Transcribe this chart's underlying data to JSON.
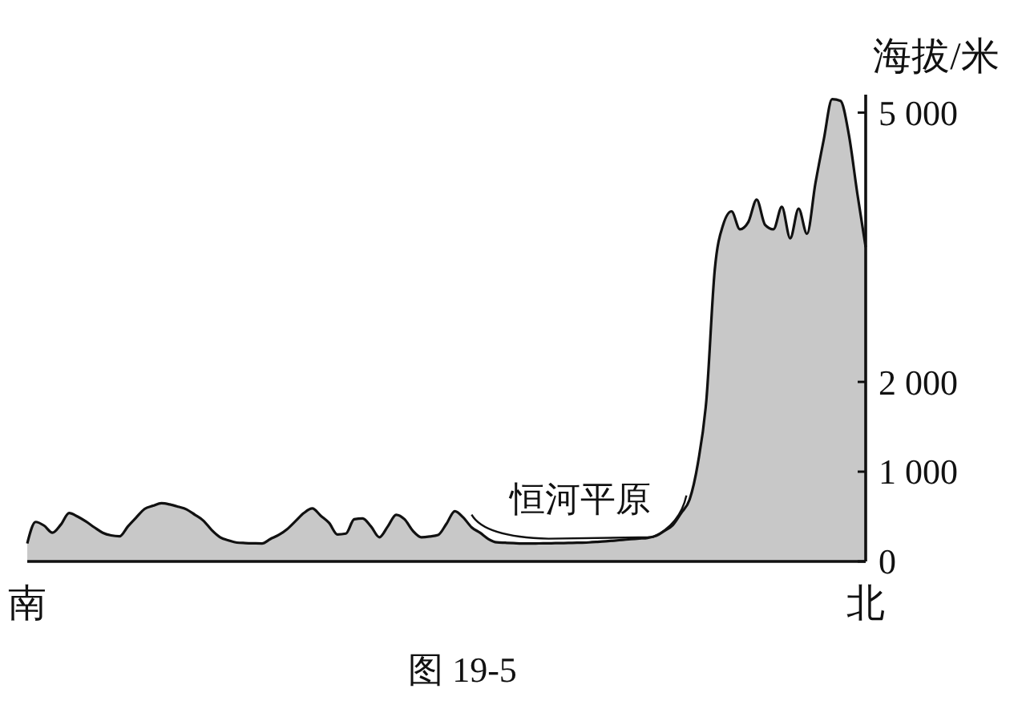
{
  "chart_data": {
    "type": "area",
    "ylabel": "海拔/米",
    "annotations": [
      "恒河平原",
      "图 19-5"
    ],
    "categories": [
      "南",
      null,
      null,
      null,
      null,
      null,
      null,
      null,
      null,
      null,
      null,
      null,
      null,
      null,
      null,
      null,
      null,
      null,
      null,
      null,
      null,
      null,
      null,
      null,
      null,
      null,
      null,
      null,
      null,
      null,
      null,
      null,
      null,
      null,
      null,
      null,
      null,
      null,
      null,
      null,
      null,
      null,
      null,
      null,
      null,
      null,
      null,
      null,
      null,
      null,
      null,
      null,
      null,
      null,
      null,
      null,
      null,
      null,
      null,
      null,
      null,
      null,
      null,
      null,
      null,
      null,
      null,
      null,
      null,
      null,
      null,
      null,
      null,
      null,
      null,
      null,
      null,
      null,
      null,
      null,
      null,
      null,
      null,
      null,
      null,
      null,
      null,
      null,
      null,
      null,
      null,
      null,
      null,
      null,
      null,
      null,
      null,
      null,
      null,
      null,
      "北"
    ],
    "ylim": [
      0,
      5200
    ],
    "yticks": [
      0,
      {
        "value": 1000,
        "label": "1 000"
      },
      {
        "value": 2000,
        "label": "2 000"
      },
      {
        "value": 5000,
        "label": "5 000"
      }
    ],
    "series": [
      {
        "color": "#c8c8c8",
        "values": [
          200,
          440,
          400,
          320,
          410,
          540,
          500,
          445,
          380,
          320,
          290,
          280,
          390,
          490,
          585,
          620,
          648,
          635,
          610,
          580,
          520,
          455,
          350,
          270,
          235,
          210,
          205,
          202,
          200,
          250,
          295,
          360,
          450,
          540,
          590,
          510,
          430,
          300,
          310,
          470,
          480,
          390,
          270,
          390,
          520,
          470,
          340,
          270,
          278,
          295,
          420,
          560,
          490,
          380,
          320,
          250,
          213,
          208,
          204,
          200,
          200,
          201,
          202,
          204,
          205,
          207,
          209,
          212,
          218,
          225,
          232,
          240,
          248,
          255,
          263,
          285,
          340,
          405,
          540,
          690,
          1100,
          1800,
          3250,
          3750,
          3900,
          3700,
          3780,
          4030,
          3750,
          3700,
          3950,
          3600,
          3930,
          3650,
          4210,
          4700,
          5150,
          5130,
          4750,
          4100,
          3500
        ]
      }
    ]
  }
}
